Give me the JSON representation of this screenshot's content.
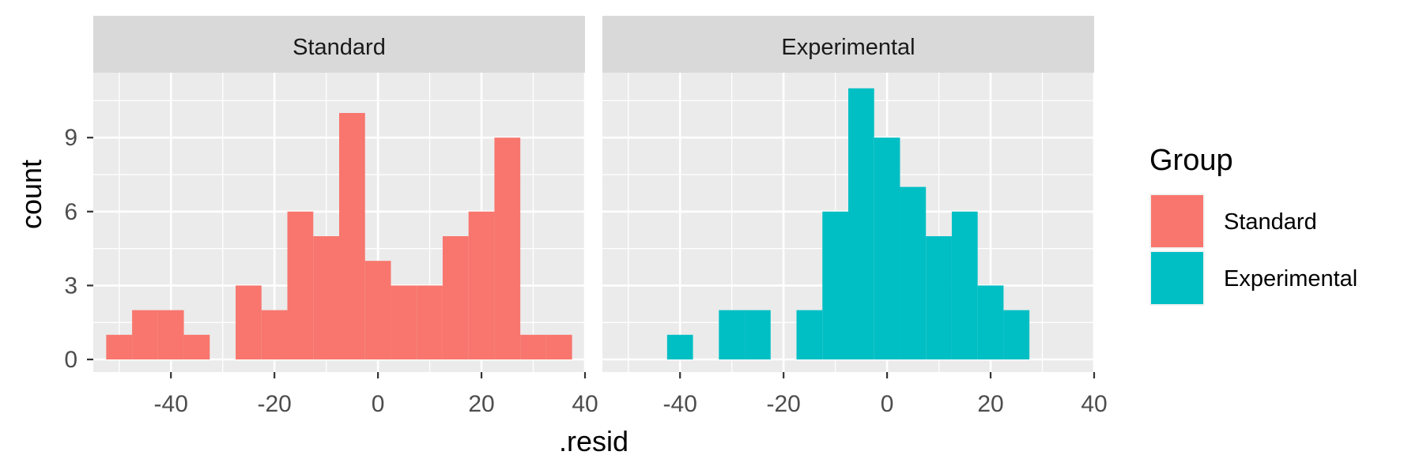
{
  "chart_data": {
    "type": "bar",
    "subtype": "faceted-histogram",
    "xlabel": ".resid",
    "ylabel": "count",
    "xlim": [
      -55,
      40
    ],
    "ylim": [
      0,
      11
    ],
    "x_ticks": [
      -40,
      -20,
      0,
      20,
      40
    ],
    "y_ticks": [
      0,
      3,
      6,
      9
    ],
    "bin_width": 5,
    "grid": true,
    "legend": {
      "title": "Group",
      "position": "right",
      "entries": [
        {
          "label": "Standard",
          "color": "#F8766D"
        },
        {
          "label": "Experimental",
          "color": "#00BFC4"
        }
      ]
    },
    "facets": [
      {
        "label": "Standard",
        "color": "#F8766D",
        "bins": [
          {
            "x0": -52.5,
            "x1": -47.5,
            "count": 1
          },
          {
            "x0": -47.5,
            "x1": -42.5,
            "count": 2
          },
          {
            "x0": -42.5,
            "x1": -37.5,
            "count": 2
          },
          {
            "x0": -37.5,
            "x1": -32.5,
            "count": 1
          },
          {
            "x0": -27.5,
            "x1": -22.5,
            "count": 3
          },
          {
            "x0": -22.5,
            "x1": -17.5,
            "count": 2
          },
          {
            "x0": -17.5,
            "x1": -12.5,
            "count": 6
          },
          {
            "x0": -12.5,
            "x1": -7.5,
            "count": 5
          },
          {
            "x0": -7.5,
            "x1": -2.5,
            "count": 10
          },
          {
            "x0": -2.5,
            "x1": 2.5,
            "count": 4
          },
          {
            "x0": 2.5,
            "x1": 7.5,
            "count": 3
          },
          {
            "x0": 7.5,
            "x1": 12.5,
            "count": 3
          },
          {
            "x0": 12.5,
            "x1": 17.5,
            "count": 5
          },
          {
            "x0": 17.5,
            "x1": 22.5,
            "count": 6
          },
          {
            "x0": 22.5,
            "x1": 27.5,
            "count": 9
          },
          {
            "x0": 27.5,
            "x1": 32.5,
            "count": 1
          },
          {
            "x0": 32.5,
            "x1": 37.5,
            "count": 1
          }
        ]
      },
      {
        "label": "Experimental",
        "color": "#00BFC4",
        "bins": [
          {
            "x0": -42.5,
            "x1": -37.5,
            "count": 1
          },
          {
            "x0": -32.5,
            "x1": -27.5,
            "count": 2
          },
          {
            "x0": -27.5,
            "x1": -22.5,
            "count": 2
          },
          {
            "x0": -17.5,
            "x1": -12.5,
            "count": 2
          },
          {
            "x0": -12.5,
            "x1": -7.5,
            "count": 6
          },
          {
            "x0": -7.5,
            "x1": -2.5,
            "count": 11
          },
          {
            "x0": -2.5,
            "x1": 2.5,
            "count": 9
          },
          {
            "x0": 2.5,
            "x1": 7.5,
            "count": 7
          },
          {
            "x0": 7.5,
            "x1": 12.5,
            "count": 5
          },
          {
            "x0": 12.5,
            "x1": 17.5,
            "count": 6
          },
          {
            "x0": 17.5,
            "x1": 22.5,
            "count": 3
          },
          {
            "x0": 22.5,
            "x1": 27.5,
            "count": 2
          }
        ]
      }
    ]
  }
}
